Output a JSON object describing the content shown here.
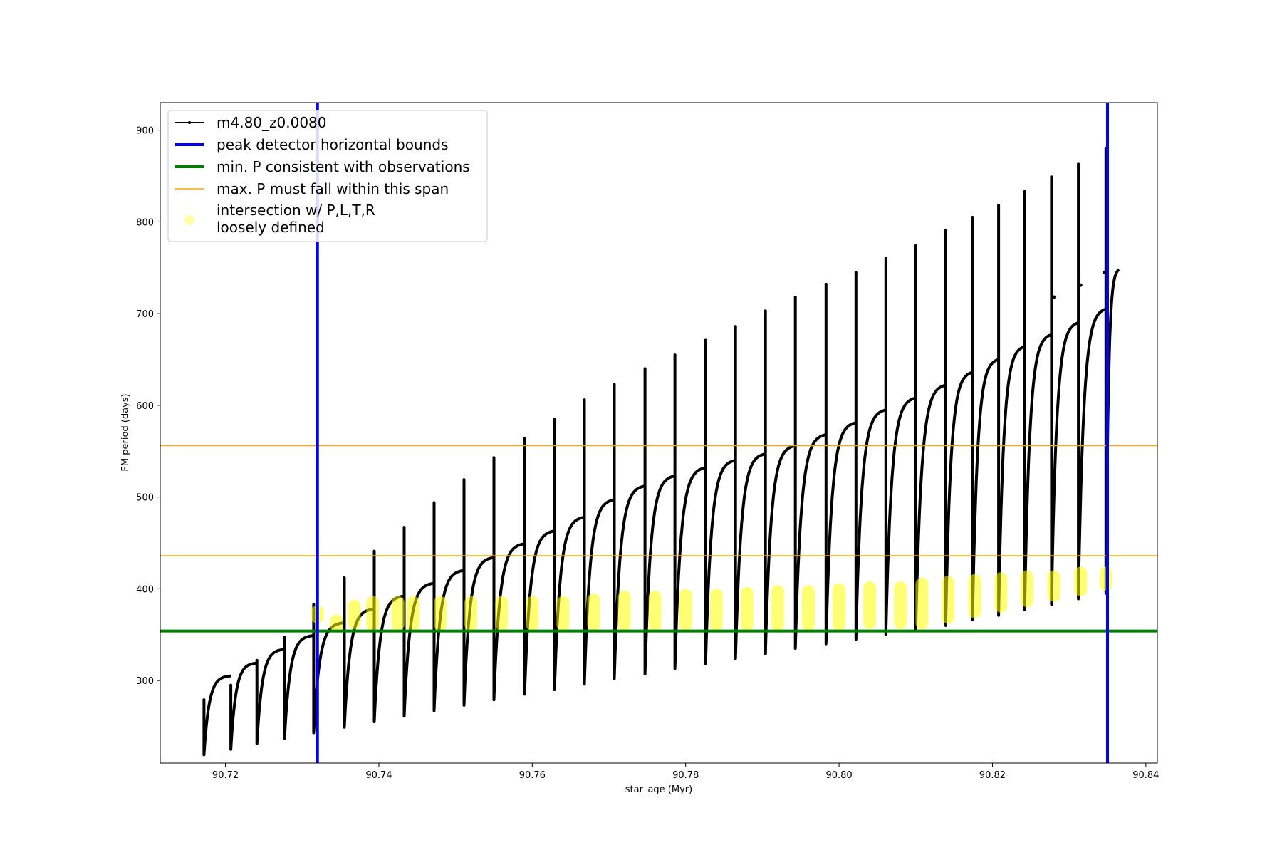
{
  "chart_data": {
    "type": "line",
    "xlabel": "star_age (Myr)",
    "ylabel": "FM period (days)",
    "xlim": [
      90.7115,
      90.8415
    ],
    "ylim": [
      210,
      930
    ],
    "xticks": [
      90.72,
      90.74,
      90.76,
      90.78,
      90.8,
      90.82,
      90.84
    ],
    "xtick_labels": [
      "90.72",
      "90.74",
      "90.76",
      "90.78",
      "90.80",
      "90.82",
      "90.84"
    ],
    "yticks": [
      300,
      400,
      500,
      600,
      700,
      800,
      900
    ],
    "ytick_labels": [
      "300",
      "400",
      "500",
      "600",
      "700",
      "800",
      "900"
    ],
    "grid": false,
    "legend_position": "top-left",
    "legend": [
      {
        "label": "m4.80_z0.0080",
        "color": "#000000",
        "style": "line-marker"
      },
      {
        "label": "peak detector horizontal bounds",
        "color": "#0000ff",
        "style": "thick-line"
      },
      {
        "label": "min. P consistent with observations",
        "color": "#008000",
        "style": "thick-line"
      },
      {
        "label": "max. P must fall within this span",
        "color": "#ffa500",
        "style": "thin-line"
      },
      {
        "label": "intersection w/ P,L,T,R",
        "label2": "loosely defined",
        "color": "#ffff00",
        "style": "marker"
      }
    ],
    "vertical_lines": [
      {
        "series": "peak detector horizontal bounds",
        "x": 90.732,
        "color": "#0000ff"
      },
      {
        "series": "peak detector horizontal bounds",
        "x": 90.835,
        "color": "#0000ff"
      }
    ],
    "horizontal_lines": [
      {
        "series": "min. P consistent with observations",
        "y": 354,
        "color": "#008000"
      },
      {
        "series": "max. P must fall within this span",
        "y": 436,
        "color": "#ffa500"
      },
      {
        "series": "max. P must fall within this span",
        "y": 556,
        "color": "#ffa500"
      }
    ],
    "pulse_cycles": [
      {
        "x0": 90.7172,
        "x1": 90.7207,
        "min": 219,
        "max": 305,
        "spike": 279
      },
      {
        "x0": 90.7207,
        "x1": 90.7241,
        "min": 225,
        "max": 319,
        "spike": 295
      },
      {
        "x0": 90.7241,
        "x1": 90.7277,
        "min": 231,
        "max": 334,
        "spike": 322
      },
      {
        "x0": 90.7277,
        "x1": 90.7315,
        "min": 237,
        "max": 349,
        "spike": 347
      },
      {
        "x0": 90.7315,
        "x1": 90.7355,
        "min": 243,
        "max": 363,
        "spike": 383
      },
      {
        "x0": 90.7355,
        "x1": 90.7394,
        "min": 249,
        "max": 378,
        "spike": 412
      },
      {
        "x0": 90.7394,
        "x1": 90.7433,
        "min": 255,
        "max": 392,
        "spike": 441
      },
      {
        "x0": 90.7433,
        "x1": 90.7472,
        "min": 261,
        "max": 406,
        "spike": 467
      },
      {
        "x0": 90.7472,
        "x1": 90.7511,
        "min": 267,
        "max": 420,
        "spike": 494
      },
      {
        "x0": 90.7511,
        "x1": 90.755,
        "min": 273,
        "max": 434,
        "spike": 519
      },
      {
        "x0": 90.755,
        "x1": 90.759,
        "min": 279,
        "max": 449,
        "spike": 543
      },
      {
        "x0": 90.759,
        "x1": 90.7629,
        "min": 285,
        "max": 463,
        "spike": 564
      },
      {
        "x0": 90.7629,
        "x1": 90.7668,
        "min": 290,
        "max": 478,
        "spike": 585
      },
      {
        "x0": 90.7668,
        "x1": 90.7707,
        "min": 296,
        "max": 497,
        "spike": 606
      },
      {
        "x0": 90.7707,
        "x1": 90.7747,
        "min": 302,
        "max": 512,
        "spike": 623
      },
      {
        "x0": 90.7747,
        "x1": 90.7786,
        "min": 307,
        "max": 523,
        "spike": 640
      },
      {
        "x0": 90.7786,
        "x1": 90.7826,
        "min": 313,
        "max": 532,
        "spike": 655
      },
      {
        "x0": 90.7826,
        "x1": 90.7865,
        "min": 318,
        "max": 540,
        "spike": 671
      },
      {
        "x0": 90.7865,
        "x1": 90.7904,
        "min": 324,
        "max": 547,
        "spike": 686
      },
      {
        "x0": 90.7904,
        "x1": 90.7943,
        "min": 329,
        "max": 556,
        "spike": 703
      },
      {
        "x0": 90.7943,
        "x1": 90.7983,
        "min": 335,
        "max": 568,
        "spike": 718
      },
      {
        "x0": 90.7983,
        "x1": 90.8022,
        "min": 340,
        "max": 581,
        "spike": 732
      },
      {
        "x0": 90.8022,
        "x1": 90.8061,
        "min": 345,
        "max": 595,
        "spike": 745
      },
      {
        "x0": 90.8061,
        "x1": 90.81,
        "min": 350,
        "max": 608,
        "spike": 760
      },
      {
        "x0": 90.81,
        "x1": 90.8139,
        "min": 355,
        "max": 622,
        "spike": 774
      },
      {
        "x0": 90.8139,
        "x1": 90.8174,
        "min": 360,
        "max": 636,
        "spike": 791
      },
      {
        "x0": 90.8174,
        "x1": 90.8208,
        "min": 366,
        "max": 650,
        "spike": 805
      },
      {
        "x0": 90.8208,
        "x1": 90.8242,
        "min": 371,
        "max": 664,
        "spike": 818
      },
      {
        "x0": 90.8242,
        "x1": 90.8277,
        "min": 377,
        "max": 677,
        "spike": 833
      },
      {
        "x0": 90.8277,
        "x1": 90.8312,
        "min": 383,
        "max": 690,
        "spike": 849
      },
      {
        "x0": 90.8312,
        "x1": 90.8348,
        "min": 389,
        "max": 705,
        "spike": 863
      },
      {
        "x0": 90.8348,
        "x1": 90.8365,
        "min": 395,
        "max": 748,
        "spike": 880
      }
    ],
    "extra_cycle_tops": [
      {
        "x": 90.828,
        "y": 718
      },
      {
        "x": 90.8315,
        "y": 731
      },
      {
        "x": 90.8346,
        "y": 745
      }
    ],
    "intersections": [
      {
        "x": 90.732,
        "ylow": 362,
        "yhigh": 382
      },
      {
        "x": 90.7345,
        "ylow": 352,
        "yhigh": 372
      },
      {
        "x": 90.7368,
        "ylow": 356,
        "yhigh": 388
      },
      {
        "x": 90.7392,
        "ylow": 354,
        "yhigh": 392
      },
      {
        "x": 90.7425,
        "ylow": 354,
        "yhigh": 392
      },
      {
        "x": 90.7445,
        "ylow": 354,
        "yhigh": 392
      },
      {
        "x": 90.748,
        "ylow": 354,
        "yhigh": 392
      },
      {
        "x": 90.752,
        "ylow": 354,
        "yhigh": 392
      },
      {
        "x": 90.756,
        "ylow": 354,
        "yhigh": 392
      },
      {
        "x": 90.76,
        "ylow": 354,
        "yhigh": 392
      },
      {
        "x": 90.764,
        "ylow": 354,
        "yhigh": 392
      },
      {
        "x": 90.768,
        "ylow": 354,
        "yhigh": 395
      },
      {
        "x": 90.772,
        "ylow": 354,
        "yhigh": 398
      },
      {
        "x": 90.776,
        "ylow": 354,
        "yhigh": 398
      },
      {
        "x": 90.78,
        "ylow": 354,
        "yhigh": 400
      },
      {
        "x": 90.784,
        "ylow": 354,
        "yhigh": 400
      },
      {
        "x": 90.788,
        "ylow": 354,
        "yhigh": 402
      },
      {
        "x": 90.792,
        "ylow": 354,
        "yhigh": 404
      },
      {
        "x": 90.796,
        "ylow": 354,
        "yhigh": 404
      },
      {
        "x": 90.8,
        "ylow": 354,
        "yhigh": 406
      },
      {
        "x": 90.804,
        "ylow": 356,
        "yhigh": 408
      },
      {
        "x": 90.808,
        "ylow": 356,
        "yhigh": 408
      },
      {
        "x": 90.8108,
        "ylow": 356,
        "yhigh": 412
      },
      {
        "x": 90.8142,
        "ylow": 362,
        "yhigh": 414
      },
      {
        "x": 90.8177,
        "ylow": 368,
        "yhigh": 416
      },
      {
        "x": 90.8211,
        "ylow": 374,
        "yhigh": 418
      },
      {
        "x": 90.8245,
        "ylow": 380,
        "yhigh": 420
      },
      {
        "x": 90.828,
        "ylow": 386,
        "yhigh": 420
      },
      {
        "x": 90.8315,
        "ylow": 392,
        "yhigh": 424
      },
      {
        "x": 90.8348,
        "ylow": 398,
        "yhigh": 424
      }
    ]
  }
}
